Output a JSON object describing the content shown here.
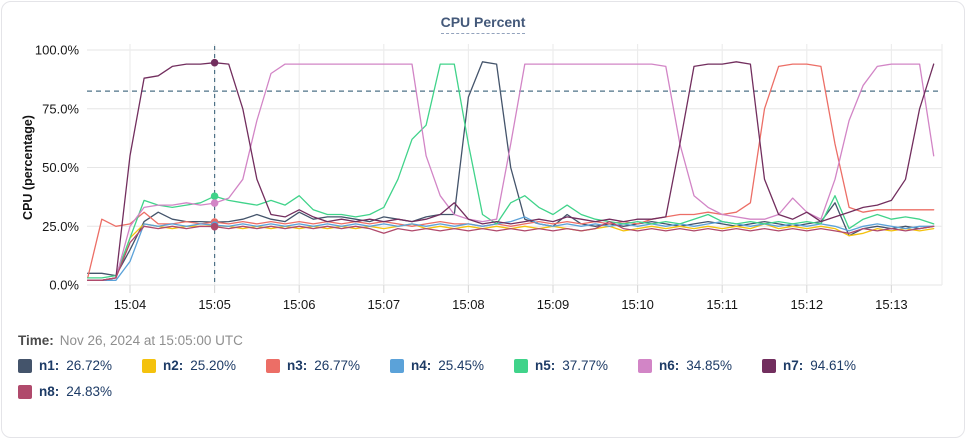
{
  "card": {
    "title": "CPU Percent"
  },
  "time_row": {
    "label": "Time:",
    "value": "Nov 26, 2024 at 15:05:00 UTC"
  },
  "legend": {
    "rows": [
      [
        {
          "name": "n1",
          "label": "n1:",
          "value": "26.72%",
          "color": "#44546b"
        },
        {
          "name": "n2",
          "label": "n2:",
          "value": "25.20%",
          "color": "#f4c20d"
        },
        {
          "name": "n3",
          "label": "n3:",
          "value": "26.77%",
          "color": "#ec6e66"
        },
        {
          "name": "n4",
          "label": "n4:",
          "value": "25.45%",
          "color": "#5ba2d9"
        },
        {
          "name": "n5",
          "label": "n5:",
          "value": "37.77%",
          "color": "#40d38a"
        },
        {
          "name": "n6",
          "label": "n6:",
          "value": "34.85%",
          "color": "#d285c6"
        },
        {
          "name": "n7",
          "label": "n7:",
          "value": "94.61%",
          "color": "#722e5e"
        }
      ],
      [
        {
          "name": "n8",
          "label": "n8:",
          "value": "24.83%",
          "color": "#b04a6c"
        }
      ]
    ]
  },
  "chart_data": {
    "type": "line",
    "title": "CPU Percent",
    "xlabel": "",
    "ylabel": "CPU (percentage)",
    "ylim": [
      0,
      104
    ],
    "yticks": [
      0,
      25,
      50,
      75,
      100
    ],
    "ytick_labels": [
      "0.0%",
      "25.0%",
      "50.0%",
      "75.0%",
      "100.0%"
    ],
    "xtick_minutes": [
      4,
      5,
      6,
      7,
      8,
      9,
      10,
      11,
      12,
      13
    ],
    "xtick_labels": [
      "15:04",
      "15:05",
      "15:06",
      "15:07",
      "15:08",
      "15:09",
      "15:10",
      "15:11",
      "15:12",
      "15:13"
    ],
    "grid": true,
    "legend_position": "bottom",
    "threshold_line": {
      "y": 82.5,
      "style": "dashed",
      "color": "#4e7287"
    },
    "crosshair": {
      "x_minute": 5,
      "time_label": "15:05",
      "style": "dashed",
      "color": "#4e7287"
    },
    "x": [
      3.5,
      3.667,
      3.833,
      4,
      4.167,
      4.333,
      4.5,
      4.667,
      4.833,
      5,
      5.167,
      5.333,
      5.5,
      5.667,
      5.833,
      6,
      6.167,
      6.333,
      6.5,
      6.667,
      6.833,
      7,
      7.167,
      7.333,
      7.5,
      7.667,
      7.833,
      8,
      8.167,
      8.333,
      8.5,
      8.667,
      8.833,
      9,
      9.167,
      9.333,
      9.5,
      9.667,
      9.833,
      10,
      10.167,
      10.333,
      10.5,
      10.667,
      10.833,
      11,
      11.167,
      11.333,
      11.5,
      11.667,
      11.833,
      12,
      12.167,
      12.333,
      12.5,
      12.667,
      12.833,
      13,
      13.167,
      13.333,
      13.5
    ],
    "series": [
      {
        "name": "n1",
        "color": "#44546b",
        "value_at_crosshair": 26.72,
        "values": [
          5,
          5,
          4,
          15,
          27,
          31,
          28,
          27,
          27,
          26.72,
          27,
          28,
          30,
          28,
          27,
          31,
          28,
          29,
          29,
          28,
          27,
          29,
          28,
          27,
          29,
          30,
          30,
          80,
          95,
          94,
          50,
          28,
          26,
          25,
          30,
          26,
          25,
          26,
          25,
          26,
          27,
          26,
          25,
          26,
          27,
          26,
          25,
          26,
          27,
          26,
          25,
          26,
          27,
          35,
          21,
          24,
          25,
          24,
          25,
          24,
          25
        ]
      },
      {
        "name": "n2",
        "color": "#f4c20d",
        "value_at_crosshair": 25.2,
        "values": [
          2,
          2,
          3,
          20,
          26,
          25,
          24,
          25,
          25,
          25.2,
          25,
          24,
          25,
          24,
          25,
          24,
          25,
          24,
          25,
          24,
          25,
          24,
          25,
          26,
          24,
          25,
          24,
          25,
          24,
          25,
          24,
          25,
          24,
          25,
          24,
          23,
          24,
          25,
          23,
          24,
          25,
          24,
          25,
          24,
          25,
          24,
          25,
          24,
          26,
          24,
          25,
          24,
          25,
          24,
          21,
          22,
          24,
          23,
          24,
          23,
          24
        ]
      },
      {
        "name": "n3",
        "color": "#ec6e66",
        "value_at_crosshair": 26.77,
        "values": [
          3,
          28,
          25,
          26,
          31,
          26,
          26,
          27,
          26,
          26.77,
          26,
          27,
          26,
          27,
          26,
          27,
          26,
          27,
          26,
          27,
          26,
          27,
          26,
          25,
          26,
          27,
          26,
          26,
          25,
          26,
          25,
          26,
          27,
          26,
          27,
          26,
          27,
          26,
          27,
          26,
          28,
          29,
          30,
          30,
          31,
          30,
          31,
          35,
          75,
          93,
          94,
          94,
          93,
          60,
          33,
          31,
          32,
          32,
          32,
          32,
          32
        ]
      },
      {
        "name": "n4",
        "color": "#5ba2d9",
        "value_at_crosshair": 25.45,
        "values": [
          2,
          2,
          2,
          10,
          26,
          25,
          26,
          25,
          26,
          25.45,
          25,
          26,
          25,
          26,
          25,
          26,
          25,
          26,
          25,
          26,
          25,
          26,
          25,
          26,
          25,
          26,
          25,
          26,
          25,
          26,
          27,
          29,
          26,
          25,
          26,
          25,
          26,
          25,
          26,
          25,
          26,
          25,
          26,
          25,
          26,
          27,
          26,
          25,
          26,
          25,
          26,
          25,
          26,
          25,
          23,
          25,
          26,
          25,
          24,
          25,
          25
        ]
      },
      {
        "name": "n5",
        "color": "#40d38a",
        "value_at_crosshair": 37.77,
        "values": [
          3,
          3,
          4,
          20,
          36,
          34,
          33,
          34,
          35,
          37.77,
          36,
          35,
          34,
          36,
          34,
          38,
          32,
          30,
          30,
          29,
          30,
          33,
          45,
          62,
          68,
          94,
          94,
          60,
          30,
          26,
          35,
          38,
          33,
          30,
          34,
          30,
          28,
          27,
          26,
          27,
          26,
          27,
          26,
          28,
          30,
          27,
          26,
          27,
          26,
          27,
          26,
          27,
          26,
          38,
          24,
          28,
          30,
          28,
          29,
          28,
          26
        ]
      },
      {
        "name": "n6",
        "color": "#d285c6",
        "value_at_crosshair": 34.85,
        "values": [
          2,
          2,
          3,
          25,
          33,
          34,
          34,
          35,
          34,
          34.85,
          37,
          45,
          70,
          90,
          94,
          94,
          94,
          94,
          94,
          94,
          94,
          94,
          94,
          94,
          55,
          38,
          30,
          28,
          27,
          28,
          60,
          94,
          94,
          94,
          94,
          94,
          94,
          94,
          94,
          94,
          94,
          93,
          60,
          38,
          33,
          30,
          29,
          28,
          28,
          30,
          37,
          31,
          28,
          45,
          70,
          85,
          93,
          94,
          94,
          94,
          55
        ]
      },
      {
        "name": "n7",
        "color": "#722e5e",
        "value_at_crosshair": 94.61,
        "values": [
          2,
          2,
          3,
          55,
          88,
          89,
          93,
          94,
          94,
          94.61,
          94,
          75,
          45,
          30,
          29,
          32,
          29,
          27,
          28,
          27,
          28,
          27,
          28,
          27,
          28,
          30,
          35,
          28,
          26,
          27,
          26,
          27,
          28,
          27,
          29,
          28,
          27,
          28,
          27,
          28,
          28,
          29,
          60,
          93,
          94,
          94,
          95,
          94,
          45,
          30,
          28,
          31,
          27,
          29,
          31,
          33,
          34,
          36,
          45,
          75,
          94
        ]
      },
      {
        "name": "n8",
        "color": "#b04a6c",
        "value_at_crosshair": 24.83,
        "values": [
          2,
          2,
          3,
          18,
          25,
          24,
          25,
          24,
          25,
          24.83,
          24,
          25,
          24,
          25,
          24,
          25,
          24,
          25,
          24,
          25,
          24,
          22,
          24,
          23,
          24,
          23,
          24,
          23,
          24,
          23,
          24,
          23,
          24,
          23,
          24,
          23,
          24,
          27,
          24,
          23,
          24,
          23,
          24,
          23,
          24,
          23,
          24,
          23,
          24,
          23,
          24,
          23,
          24,
          23,
          22,
          24,
          23,
          24,
          23,
          24,
          25
        ]
      }
    ]
  }
}
